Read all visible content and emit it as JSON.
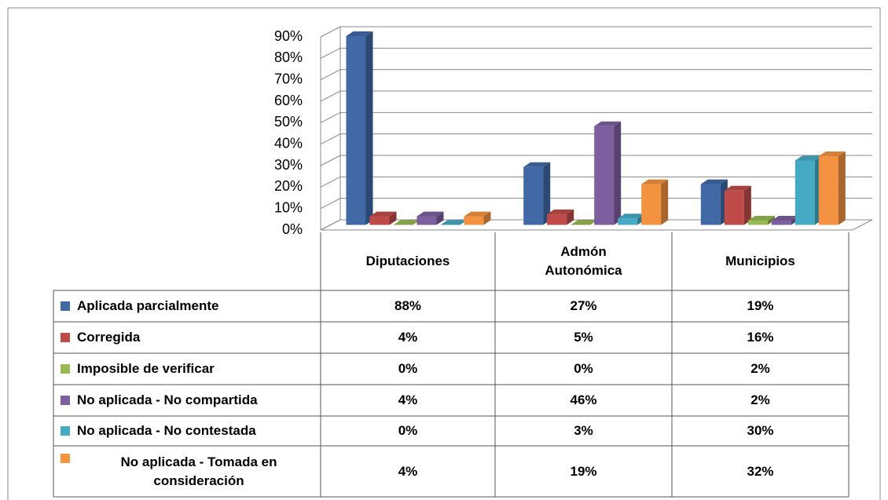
{
  "chart_data": {
    "type": "bar3d",
    "categories": [
      "Diputaciones",
      "Admón Autonómica",
      "Municipios"
    ],
    "series": [
      {
        "name": "Aplicada parcialmente",
        "color": "#4069a6",
        "values": [
          88,
          27,
          19
        ],
        "value_labels": [
          "88%",
          "27%",
          "19%"
        ]
      },
      {
        "name": "Corregida",
        "color": "#be4b48",
        "values": [
          4,
          5,
          16
        ],
        "value_labels": [
          "4%",
          "5%",
          "16%"
        ]
      },
      {
        "name": "Imposible de verificar",
        "color": "#98b954",
        "values": [
          0,
          0,
          2
        ],
        "value_labels": [
          "0%",
          "0%",
          "2%"
        ]
      },
      {
        "name": "No aplicada - No compartida",
        "color": "#7d5fa0",
        "values": [
          4,
          46,
          2
        ],
        "value_labels": [
          "4%",
          "46%",
          "2%"
        ]
      },
      {
        "name": "No aplicada - No contestada",
        "color": "#46aac5",
        "values": [
          0,
          3,
          30
        ],
        "value_labels": [
          "0%",
          "3%",
          "30%"
        ]
      },
      {
        "name": "No aplicada - Tomada en consideración",
        "color": "#f39240",
        "values": [
          4,
          19,
          32
        ],
        "value_labels": [
          "4%",
          "19%",
          "32%"
        ]
      }
    ],
    "ylim": [
      0,
      90
    ],
    "yticks": [
      {
        "value": 0,
        "label": "0%"
      },
      {
        "value": 10,
        "label": "10%"
      },
      {
        "value": 20,
        "label": "20%"
      },
      {
        "value": 30,
        "label": "30%"
      },
      {
        "value": 40,
        "label": "40%"
      },
      {
        "value": 50,
        "label": "50%"
      },
      {
        "value": 60,
        "label": "60%"
      },
      {
        "value": 70,
        "label": "70%"
      },
      {
        "value": 80,
        "label": "80%"
      },
      {
        "value": 90,
        "label": "90%"
      }
    ],
    "grid": true
  }
}
